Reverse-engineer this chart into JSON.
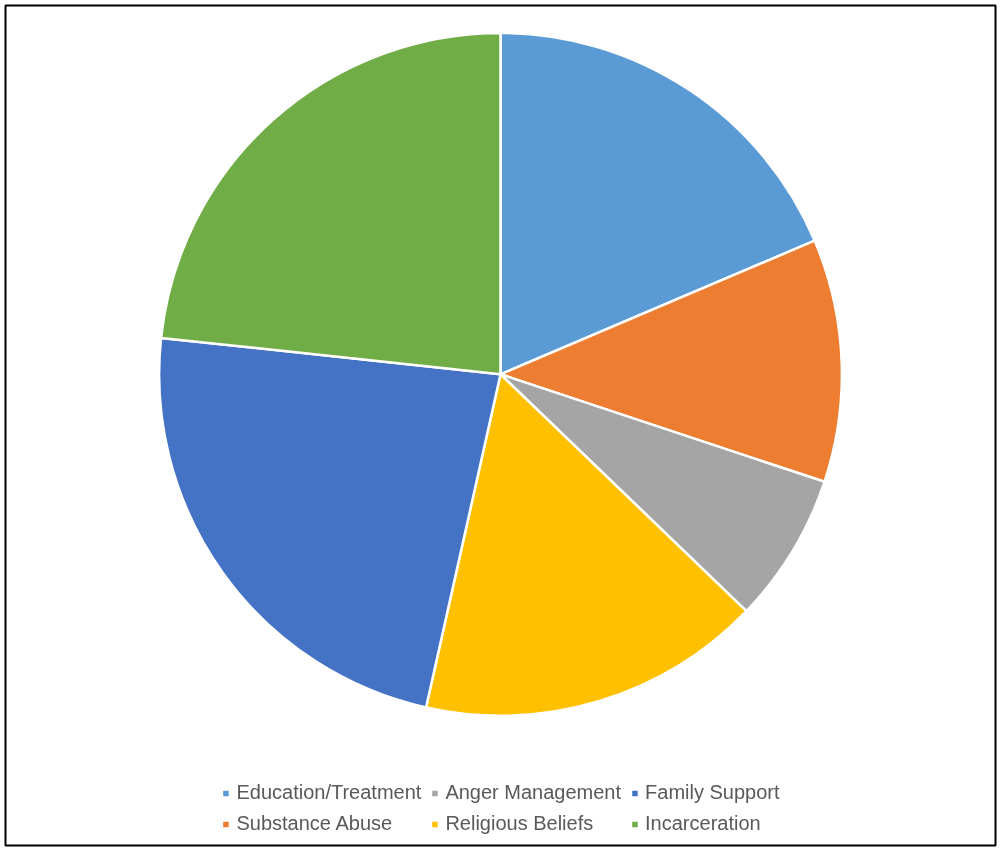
{
  "chart_data": {
    "type": "pie",
    "categories": [
      "Education/Treatment",
      "Substance Abuse",
      "Anger Management",
      "Religious Beliefs",
      "Family Support",
      "Incarceration"
    ],
    "values": [
      18.6,
      11.5,
      7.1,
      16.3,
      23.2,
      23.3
    ],
    "colors": [
      "#5b9bd5",
      "#ed7d31",
      "#a5a5a5",
      "#ffc000",
      "#4472c4",
      "#70ad47"
    ],
    "legend": "bottom"
  }
}
